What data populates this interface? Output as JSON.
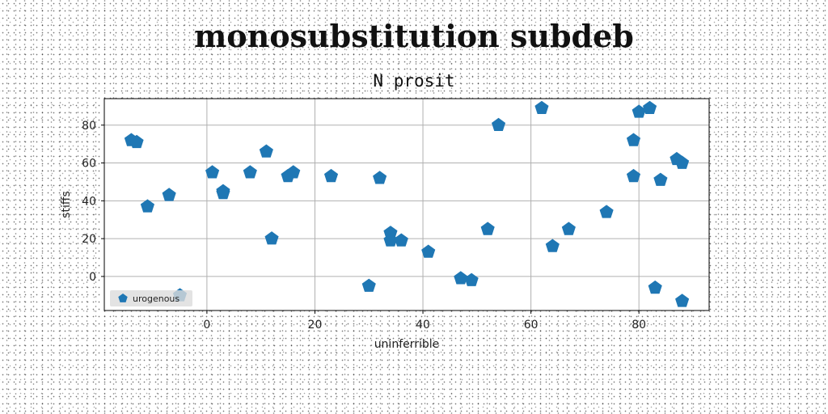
{
  "colors": {
    "marker": "#1f77b4",
    "grid": "#b0b0b0",
    "axes": "#000000",
    "legend_bg": "#dcdcdc"
  },
  "chart_data": {
    "type": "scatter",
    "title": "monosubstitution subdeb",
    "subtitle": "N prosit",
    "xlabel": "uninferrible",
    "ylabel": "stiffs",
    "xlim": [
      -19,
      93
    ],
    "ylim": [
      -18,
      94
    ],
    "xticks": [
      0,
      20,
      40,
      60,
      80
    ],
    "yticks": [
      0,
      20,
      40,
      60,
      80
    ],
    "grid": true,
    "legend_placement": "lower-left",
    "marker": "pentagon",
    "series": [
      {
        "name": "urogenous",
        "points": [
          [
            -14,
            72
          ],
          [
            -13,
            71
          ],
          [
            -11,
            37
          ],
          [
            -7,
            43
          ],
          [
            -5,
            -10
          ],
          [
            1,
            55
          ],
          [
            3,
            45
          ],
          [
            3,
            44
          ],
          [
            8,
            55
          ],
          [
            11,
            66
          ],
          [
            12,
            20
          ],
          [
            15,
            53
          ],
          [
            16,
            55
          ],
          [
            23,
            53
          ],
          [
            30,
            -5
          ],
          [
            32,
            52
          ],
          [
            34,
            23
          ],
          [
            34,
            19
          ],
          [
            36,
            19
          ],
          [
            41,
            13
          ],
          [
            47,
            -1
          ],
          [
            49,
            -2
          ],
          [
            52,
            25
          ],
          [
            54,
            80
          ],
          [
            62,
            89
          ],
          [
            64,
            16
          ],
          [
            67,
            25
          ],
          [
            74,
            34
          ],
          [
            79,
            72
          ],
          [
            79,
            53
          ],
          [
            80,
            87
          ],
          [
            82,
            89
          ],
          [
            83,
            -6
          ],
          [
            84,
            51
          ],
          [
            87,
            62
          ],
          [
            88,
            60
          ],
          [
            88,
            -13
          ]
        ]
      }
    ]
  }
}
